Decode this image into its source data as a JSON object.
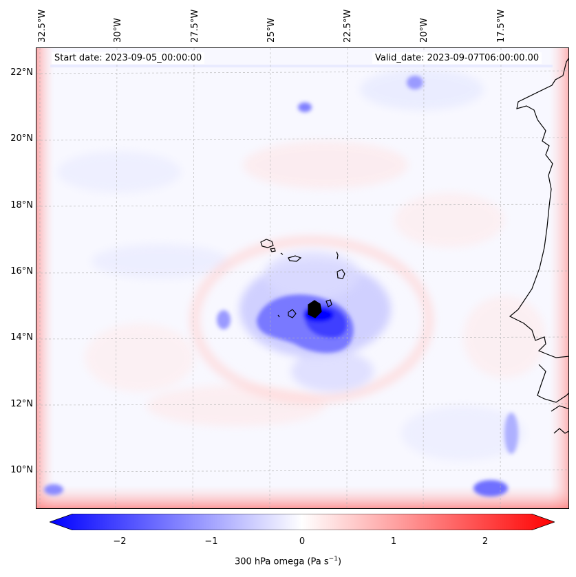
{
  "map": {
    "start_date_text": "Start date: 2023-09-05_00:00:00",
    "valid_date_text": "Valid_date: 2023-09-07T06:00:00.00",
    "longitude_labels": [
      "32.5°W",
      "30°W",
      "27.5°W",
      "25°W",
      "22.5°W",
      "20°W",
      "17.5°W"
    ],
    "latitude_labels": [
      "22°N",
      "20°N",
      "18°N",
      "16°N",
      "14°N",
      "12°N",
      "10°N"
    ],
    "features": [
      "Cape Verde islands",
      "West African coastline"
    ]
  },
  "colorbar": {
    "label_prefix": "300 hPa omega (Pa s",
    "label_exponent": "−1",
    "label_suffix": ")",
    "tick_labels": [
      "−2",
      "−1",
      "0",
      "1",
      "2"
    ],
    "min_color": "#0000ff",
    "mid_color": "#ffffff",
    "max_color": "#ff0000"
  }
}
